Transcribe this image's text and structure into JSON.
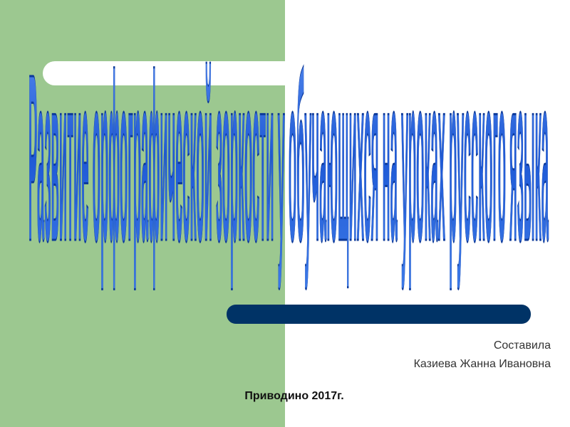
{
  "slide": {
    "title": "Развитие орфографической зоркости у обучающихся на уроках русского языка",
    "author_label": "Составила",
    "author": "Казиева Жанна Ивановна",
    "footer": "Приводино 2017г."
  }
}
